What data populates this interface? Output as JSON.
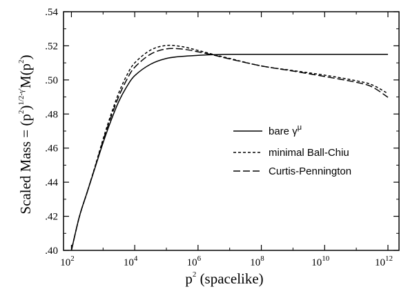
{
  "chart_data": {
    "type": "line",
    "title": "",
    "xlabel": {
      "base": "p",
      "sup": "2",
      "rest": " (spacelike)"
    },
    "ylabel": {
      "prefix": "Scaled Mass = (p",
      "sup1": "2",
      "mid": ")",
      "sup2": "1/2-γ'",
      "suffix": "M(p",
      "sup3": "2",
      "end": ")"
    },
    "x_scale": "log10",
    "xlim_exp": [
      1.75,
      12.35
    ],
    "ylim": [
      0.4,
      0.54
    ],
    "x_ticks": [
      {
        "base": "10",
        "exp": "2",
        "value": 2
      },
      {
        "base": "10",
        "exp": "4",
        "value": 4
      },
      {
        "base": "10",
        "exp": "6",
        "value": 6
      },
      {
        "base": "10",
        "exp": "8",
        "value": 8
      },
      {
        "base": "10",
        "exp": "10",
        "value": 10
      },
      {
        "base": "10",
        "exp": "12",
        "value": 12
      }
    ],
    "y_ticks": [
      {
        "label": ".40",
        "value": 0.4
      },
      {
        "label": ".42",
        "value": 0.42
      },
      {
        "label": ".44",
        "value": 0.44
      },
      {
        "label": ".46",
        "value": 0.46
      },
      {
        "label": ".48",
        "value": 0.48
      },
      {
        "label": ".50",
        "value": 0.5
      },
      {
        "label": ".52",
        "value": 0.52
      },
      {
        "label": ".54",
        "value": 0.54
      }
    ],
    "legend_position": "right-middle",
    "series": [
      {
        "name": "bare γ",
        "name_sup": "μ",
        "style": "solid",
        "x_exp": [
          2.0,
          2.25,
          2.5,
          2.75,
          3.0,
          3.25,
          3.5,
          3.75,
          4.0,
          4.5,
          5.0,
          5.5,
          6.0,
          6.5,
          7.0,
          8.0,
          9.0,
          10.0,
          11.0,
          12.0
        ],
        "y": [
          0.4,
          0.4197,
          0.4343,
          0.4487,
          0.4631,
          0.4761,
          0.4875,
          0.4961,
          0.5025,
          0.5092,
          0.5126,
          0.5138,
          0.5144,
          0.5148,
          0.515,
          0.515,
          0.515,
          0.515,
          0.515,
          0.515
        ]
      },
      {
        "name": "minimal Ball-Chiu",
        "style": "short-dash",
        "x_exp": [
          2.0,
          2.25,
          2.5,
          2.75,
          3.0,
          3.25,
          3.5,
          3.75,
          4.0,
          4.5,
          5.0,
          5.5,
          6.0,
          6.5,
          7.0,
          8.0,
          9.0,
          10.0,
          11.0,
          11.5,
          12.0
        ],
        "y": [
          0.4,
          0.4197,
          0.4343,
          0.4495,
          0.4653,
          0.4797,
          0.4926,
          0.5027,
          0.51,
          0.5175,
          0.5202,
          0.5195,
          0.5173,
          0.5149,
          0.5126,
          0.5082,
          0.5055,
          0.5028,
          0.4995,
          0.4971,
          0.492
        ]
      },
      {
        "name": "Curtis-Pennington",
        "style": "long-dash",
        "x_exp": [
          2.0,
          2.25,
          2.5,
          2.75,
          3.0,
          3.25,
          3.5,
          3.75,
          4.0,
          4.5,
          5.0,
          5.5,
          6.0,
          6.5,
          7.0,
          8.0,
          9.0,
          10.0,
          11.0,
          11.5,
          12.0
        ],
        "y": [
          0.4,
          0.4197,
          0.4343,
          0.4491,
          0.4644,
          0.4783,
          0.4905,
          0.5002,
          0.5074,
          0.5151,
          0.5182,
          0.5181,
          0.5165,
          0.5145,
          0.5123,
          0.5082,
          0.5052,
          0.502,
          0.4986,
          0.4959,
          0.4898
        ]
      }
    ]
  }
}
